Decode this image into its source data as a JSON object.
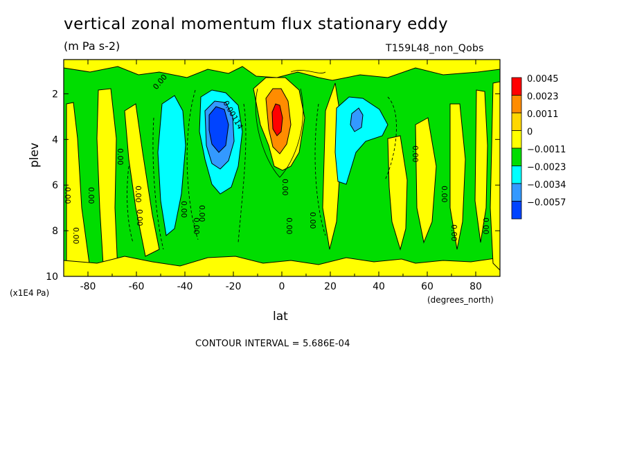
{
  "chart_data": {
    "type": "heatmap",
    "title": "vertical zonal momentum flux stationary eddy",
    "units": "(m Pa s-2)",
    "run_name": "T159L48_non_Qobs",
    "xlabel": "lat",
    "x_units": "(degrees_north)",
    "ylabel": "plev",
    "y_units": "(x1E4 Pa)",
    "xlim": [
      -90,
      90
    ],
    "ylim": [
      10,
      0.5
    ],
    "x_ticks": [
      -80,
      -60,
      -40,
      -20,
      0,
      20,
      40,
      60,
      80
    ],
    "y_ticks": [
      2,
      4,
      6,
      8,
      10
    ],
    "contour_interval_text": "CONTOUR INTERVAL = 5.686E-04",
    "colorbar": {
      "levels": [
        "0.0045",
        "0.0023",
        "0.0011",
        "0",
        "−0.0011",
        "−0.0023",
        "−0.0034",
        "−0.0057"
      ],
      "colors": [
        "#ff0000",
        "#ff8c00",
        "#ffd700",
        "#ffff00",
        "#00dd00",
        "#00ffff",
        "#3399ff",
        "#0044ff"
      ]
    },
    "contour_labels": [
      "0.00",
      "0.00114"
    ],
    "features": [
      {
        "lat": -28,
        "plev": 3.2,
        "value": -0.0057
      },
      {
        "lat": -42,
        "plev": 4.5,
        "value": -0.0023
      },
      {
        "lat": -3,
        "plev": 2.8,
        "value": 0.0045
      },
      {
        "lat": 30,
        "plev": 3.2,
        "value": -0.0023
      }
    ]
  }
}
